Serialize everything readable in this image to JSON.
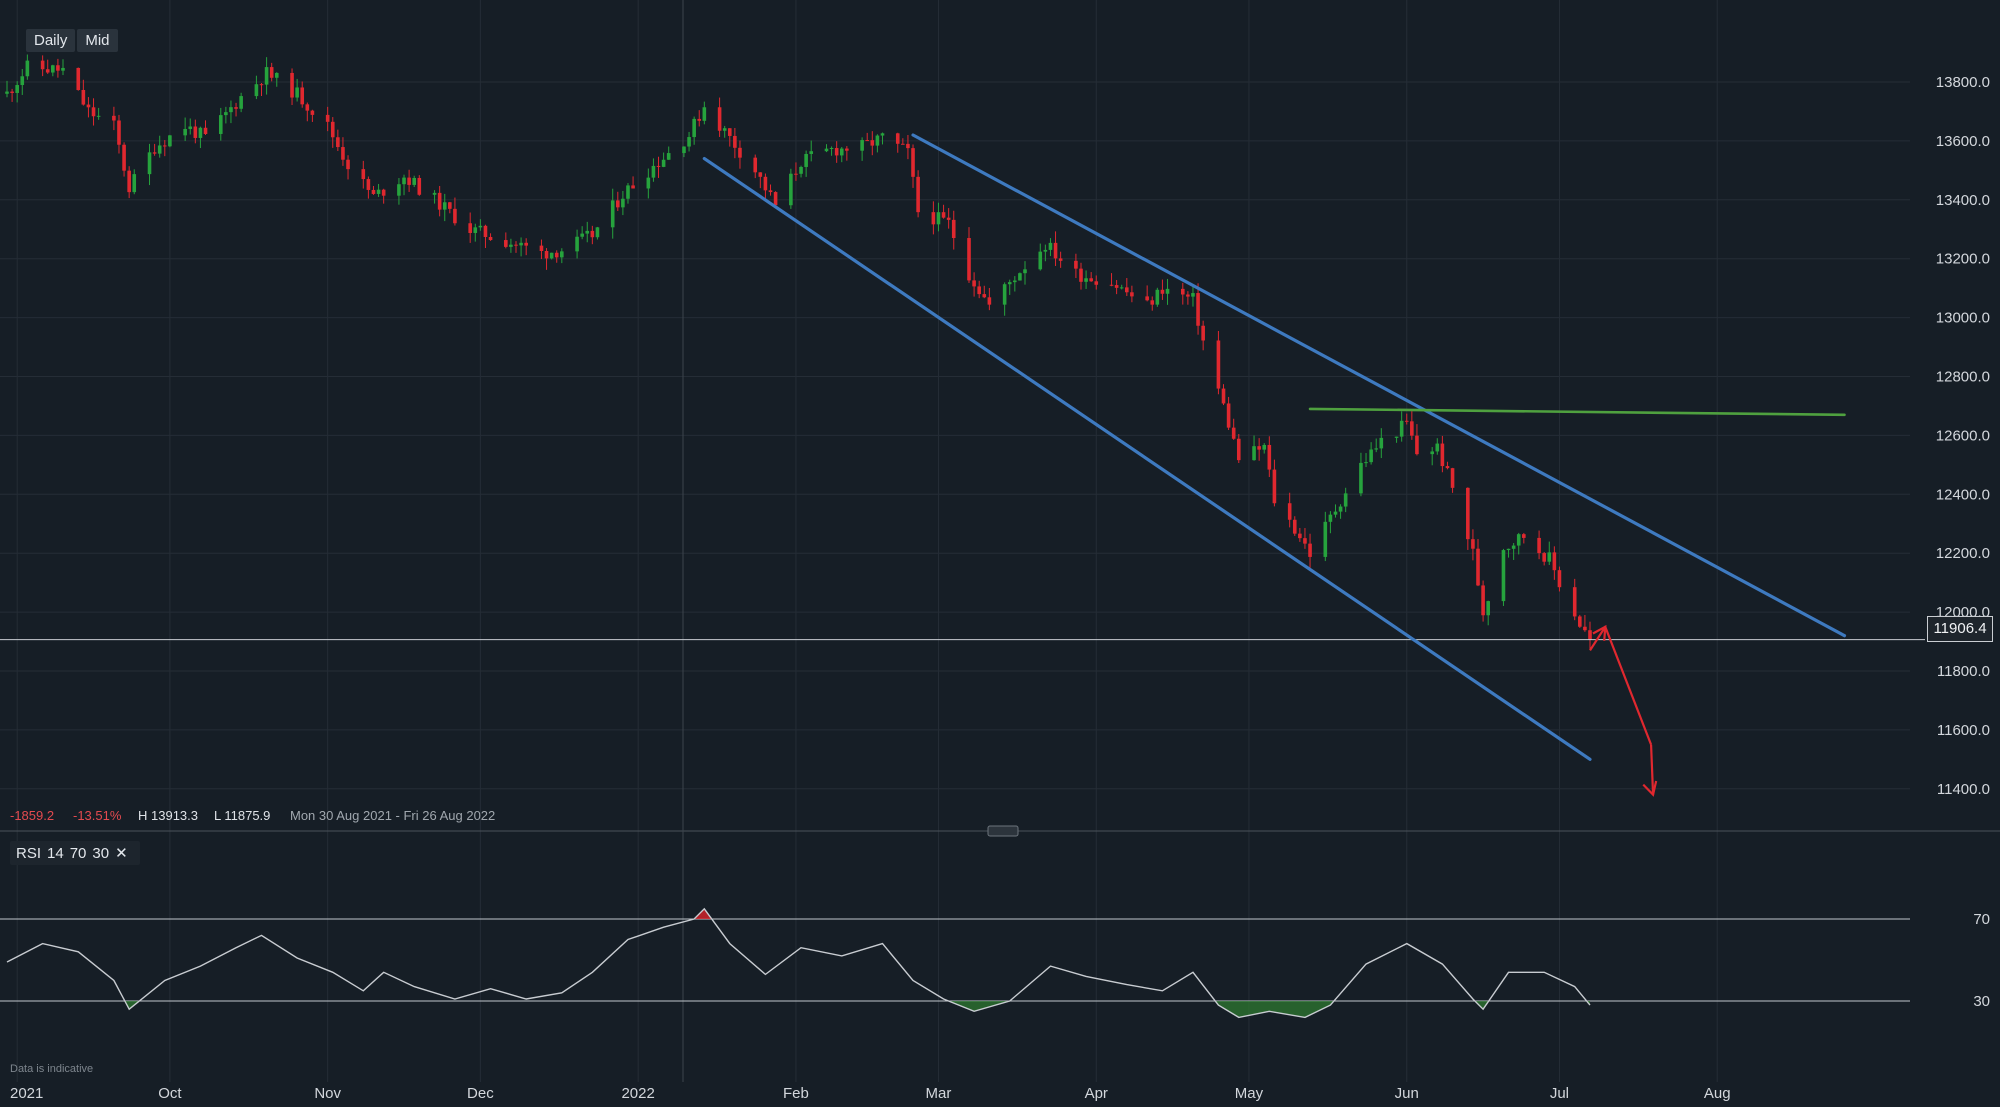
{
  "toolbar": {
    "timeframe": "Daily",
    "price_type": "Mid"
  },
  "stats": {
    "change": "-1859.2",
    "change_pct": "-13.51%",
    "high": "H 13913.3",
    "low": "L 11875.9",
    "date_range": "Mon 30 Aug 2021 - Fri 26 Aug 2022"
  },
  "current_price": "11906.4",
  "rsi": {
    "label": "RSI",
    "period": "14",
    "upper": "70",
    "lower": "30",
    "close_symbol": "✕"
  },
  "disclaimer": "Data is indicative",
  "colors": {
    "background": "#161e26",
    "grid": "#252d36",
    "up": "#26a33d",
    "down": "#e0282f",
    "channel": "#3e7ac0",
    "resistance": "#4fa13f",
    "projection": "#e0282f",
    "rsi_line": "#c8ccd1"
  },
  "chart_data": {
    "type": "candlestick",
    "title": "",
    "price_axis": {
      "ticks": [
        13800,
        13600,
        13400,
        13200,
        13000,
        12800,
        12600,
        12400,
        12200,
        12000,
        11800,
        11600,
        11400
      ],
      "range": [
        11300,
        13950
      ]
    },
    "time_axis": {
      "labels": [
        "2021",
        "Oct",
        "Nov",
        "Dec",
        "2022",
        "Feb",
        "Mar",
        "Apr",
        "May",
        "Jun",
        "Jul",
        "Aug"
      ]
    },
    "price_path": [
      [
        "2021-08-30",
        13760
      ],
      [
        "2021-09-03",
        13850
      ],
      [
        "2021-09-10",
        13840
      ],
      [
        "2021-09-15",
        13700
      ],
      [
        "2021-09-20",
        13650
      ],
      [
        "2021-09-23",
        13440
      ],
      [
        "2021-09-28",
        13580
      ],
      [
        "2021-10-04",
        13650
      ],
      [
        "2021-10-08",
        13610
      ],
      [
        "2021-10-15",
        13750
      ],
      [
        "2021-10-20",
        13830
      ],
      [
        "2021-10-26",
        13760
      ],
      [
        "2021-11-01",
        13650
      ],
      [
        "2021-11-05",
        13520
      ],
      [
        "2021-11-10",
        13410
      ],
      [
        "2021-11-16",
        13480
      ],
      [
        "2021-11-22",
        13400
      ],
      [
        "2021-11-29",
        13300
      ],
      [
        "2021-12-06",
        13260
      ],
      [
        "2021-12-13",
        13220
      ],
      [
        "2021-12-17",
        13230
      ],
      [
        "2021-12-23",
        13280
      ],
      [
        "2021-12-29",
        13420
      ],
      [
        "2022-01-03",
        13500
      ],
      [
        "2022-01-07",
        13560
      ],
      [
        "2022-01-11",
        13620
      ],
      [
        "2022-01-14",
        13720
      ],
      [
        "2022-01-19",
        13610
      ],
      [
        "2022-01-24",
        13500
      ],
      [
        "2022-01-28",
        13380
      ],
      [
        "2022-02-02",
        13530
      ],
      [
        "2022-02-08",
        13570
      ],
      [
        "2022-02-14",
        13580
      ],
      [
        "2022-02-18",
        13610
      ],
      [
        "2022-02-23",
        13560
      ],
      [
        "2022-02-25",
        13360
      ],
      [
        "2022-03-03",
        13320
      ],
      [
        "2022-03-07",
        13150
      ],
      [
        "2022-03-11",
        13040
      ],
      [
        "2022-03-17",
        13160
      ],
      [
        "2022-03-22",
        13250
      ],
      [
        "2022-03-28",
        13150
      ],
      [
        "2022-04-04",
        13120
      ],
      [
        "2022-04-11",
        13040
      ],
      [
        "2022-04-14",
        13100
      ],
      [
        "2022-04-20",
        13060
      ],
      [
        "2022-04-22",
        12920
      ],
      [
        "2022-04-26",
        12700
      ],
      [
        "2022-04-29",
        12520
      ],
      [
        "2022-05-04",
        12560
      ],
      [
        "2022-05-06",
        12380
      ],
      [
        "2022-05-11",
        12260
      ],
      [
        "2022-05-13",
        12200
      ],
      [
        "2022-05-18",
        12350
      ],
      [
        "2022-05-23",
        12500
      ],
      [
        "2022-05-27",
        12580
      ],
      [
        "2022-06-01",
        12640
      ],
      [
        "2022-06-03",
        12540
      ],
      [
        "2022-06-07",
        12560
      ],
      [
        "2022-06-10",
        12420
      ],
      [
        "2022-06-14",
        12200
      ],
      [
        "2022-06-16",
        12000
      ],
      [
        "2022-06-20",
        12220
      ],
      [
        "2022-06-24",
        12260
      ],
      [
        "2022-06-29",
        12180
      ],
      [
        "2022-07-01",
        12100
      ],
      [
        "2022-07-05",
        11960
      ],
      [
        "2022-07-07",
        11906
      ]
    ],
    "annotations": {
      "channel_upper": [
        [
          "2022-02-24",
          13620
        ],
        [
          "2022-08-26",
          11920
        ]
      ],
      "channel_lower": [
        [
          "2022-01-14",
          13540
        ],
        [
          "2022-07-07",
          11500
        ]
      ],
      "resistance": [
        [
          "2022-05-13",
          12690
        ],
        [
          "2022-08-26",
          12670
        ]
      ],
      "projection": [
        [
          "2022-07-07",
          11870
        ],
        [
          "2022-07-10",
          11950
        ],
        [
          "2022-07-19",
          11550
        ]
      ]
    },
    "rsi": {
      "period": 14,
      "levels": [
        70,
        30
      ],
      "range": [
        0,
        100
      ],
      "path": [
        [
          "2021-08-30",
          49
        ],
        [
          "2021-09-06",
          58
        ],
        [
          "2021-09-13",
          54
        ],
        [
          "2021-09-20",
          40
        ],
        [
          "2021-09-23",
          26
        ],
        [
          "2021-09-30",
          40
        ],
        [
          "2021-10-07",
          47
        ],
        [
          "2021-10-14",
          56
        ],
        [
          "2021-10-19",
          62
        ],
        [
          "2021-10-26",
          51
        ],
        [
          "2021-11-02",
          44
        ],
        [
          "2021-11-08",
          35
        ],
        [
          "2021-11-12",
          44
        ],
        [
          "2021-11-18",
          37
        ],
        [
          "2021-11-26",
          31
        ],
        [
          "2021-12-03",
          36
        ],
        [
          "2021-12-10",
          31
        ],
        [
          "2021-12-17",
          34
        ],
        [
          "2021-12-23",
          44
        ],
        [
          "2021-12-30",
          60
        ],
        [
          "2022-01-06",
          66
        ],
        [
          "2022-01-12",
          70
        ],
        [
          "2022-01-14",
          75
        ],
        [
          "2022-01-19",
          58
        ],
        [
          "2022-01-26",
          43
        ],
        [
          "2022-02-02",
          56
        ],
        [
          "2022-02-10",
          52
        ],
        [
          "2022-02-18",
          58
        ],
        [
          "2022-02-24",
          40
        ],
        [
          "2022-03-02",
          31
        ],
        [
          "2022-03-08",
          25
        ],
        [
          "2022-03-15",
          30
        ],
        [
          "2022-03-23",
          47
        ],
        [
          "2022-03-30",
          42
        ],
        [
          "2022-04-07",
          38
        ],
        [
          "2022-04-14",
          35
        ],
        [
          "2022-04-20",
          44
        ],
        [
          "2022-04-25",
          28
        ],
        [
          "2022-04-29",
          22
        ],
        [
          "2022-05-05",
          25
        ],
        [
          "2022-05-12",
          22
        ],
        [
          "2022-05-17",
          28
        ],
        [
          "2022-05-24",
          48
        ],
        [
          "2022-06-01",
          58
        ],
        [
          "2022-06-08",
          48
        ],
        [
          "2022-06-14",
          31
        ],
        [
          "2022-06-16",
          26
        ],
        [
          "2022-06-21",
          44
        ],
        [
          "2022-06-28",
          44
        ],
        [
          "2022-07-04",
          37
        ],
        [
          "2022-07-07",
          28
        ]
      ]
    }
  }
}
